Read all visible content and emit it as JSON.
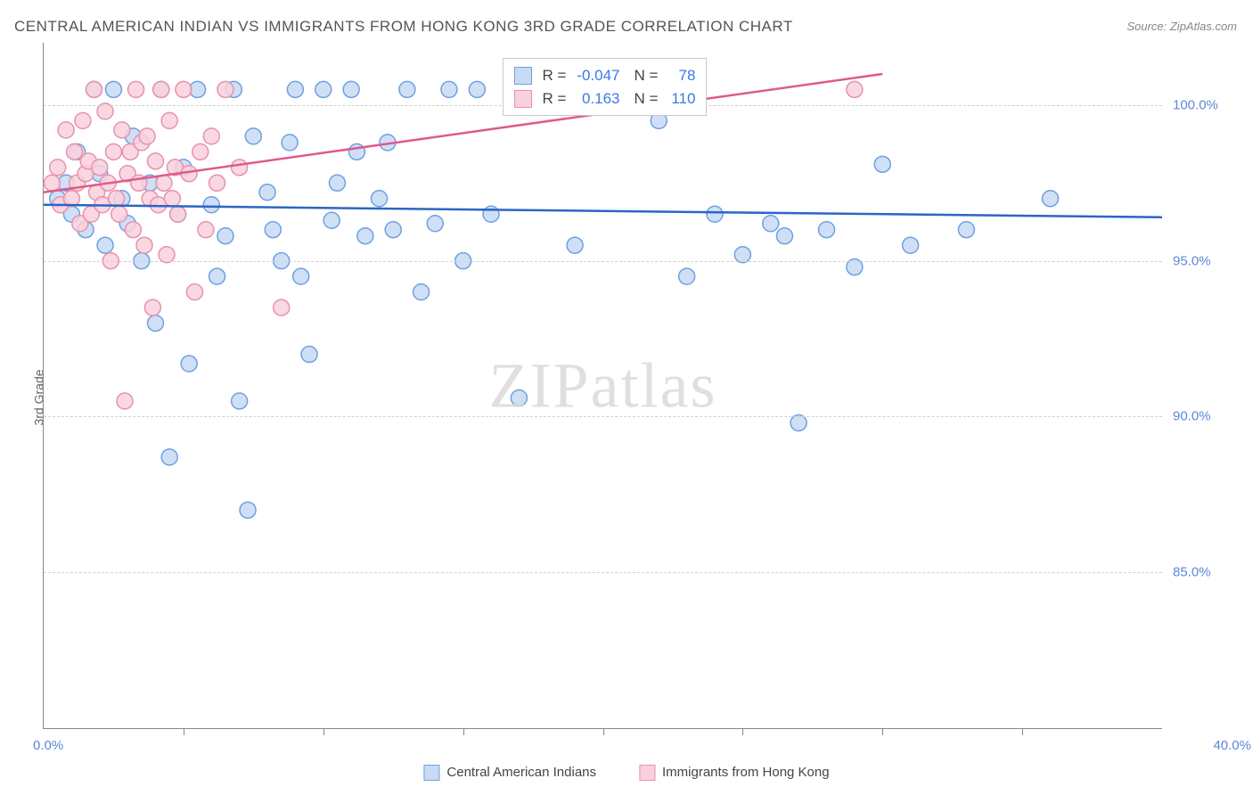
{
  "title": "CENTRAL AMERICAN INDIAN VS IMMIGRANTS FROM HONG KONG 3RD GRADE CORRELATION CHART",
  "source": "Source: ZipAtlas.com",
  "ylabel": "3rd Grade",
  "watermark_zip": "ZIP",
  "watermark_atlas": "atlas",
  "chart": {
    "type": "scatter",
    "xlim": [
      0,
      40
    ],
    "ylim": [
      80,
      102
    ],
    "xticks_pct": [
      5,
      10,
      15,
      20,
      25,
      30,
      35
    ],
    "ytick_values": [
      85,
      90,
      95,
      100
    ],
    "ytick_labels": [
      "85.0%",
      "90.0%",
      "95.0%",
      "100.0%"
    ],
    "xlim_left_label": "0.0%",
    "xlim_right_label": "40.0%",
    "grid_color": "#d0d0d0",
    "background_color": "#ffffff",
    "marker_radius": 9,
    "marker_stroke_width": 1.5,
    "line_width": 2.5,
    "series": [
      {
        "id": "cai",
        "label": "Central American Indians",
        "fill": "#c7dbf5",
        "stroke": "#6fa0e0",
        "line_color": "#2b66c4",
        "r_label": "R =",
        "r_value": "-0.047",
        "n_label": "N =",
        "n_value": "78",
        "trend": {
          "x1": 0,
          "y1": 96.8,
          "x2": 40,
          "y2": 96.4
        },
        "points": [
          [
            0.5,
            97.0
          ],
          [
            0.8,
            97.5
          ],
          [
            1.0,
            96.5
          ],
          [
            1.2,
            98.5
          ],
          [
            1.5,
            96.0
          ],
          [
            1.8,
            100.5
          ],
          [
            2.0,
            97.8
          ],
          [
            2.2,
            95.5
          ],
          [
            2.5,
            100.5
          ],
          [
            2.8,
            97.0
          ],
          [
            3.0,
            96.2
          ],
          [
            3.2,
            99.0
          ],
          [
            3.5,
            95.0
          ],
          [
            3.8,
            97.5
          ],
          [
            4.0,
            93.0
          ],
          [
            4.2,
            100.5
          ],
          [
            4.5,
            88.7
          ],
          [
            4.8,
            96.5
          ],
          [
            5.0,
            98.0
          ],
          [
            5.2,
            91.7
          ],
          [
            5.5,
            100.5
          ],
          [
            6.0,
            96.8
          ],
          [
            6.2,
            94.5
          ],
          [
            6.5,
            95.8
          ],
          [
            6.8,
            100.5
          ],
          [
            7.0,
            90.5
          ],
          [
            7.3,
            87.0
          ],
          [
            7.5,
            99.0
          ],
          [
            8.0,
            97.2
          ],
          [
            8.2,
            96.0
          ],
          [
            8.5,
            95.0
          ],
          [
            8.8,
            98.8
          ],
          [
            9.0,
            100.5
          ],
          [
            9.2,
            94.5
          ],
          [
            9.5,
            92.0
          ],
          [
            10.0,
            100.5
          ],
          [
            10.3,
            96.3
          ],
          [
            10.5,
            97.5
          ],
          [
            11.0,
            100.5
          ],
          [
            11.2,
            98.5
          ],
          [
            11.5,
            95.8
          ],
          [
            12.0,
            97.0
          ],
          [
            12.3,
            98.8
          ],
          [
            12.5,
            96.0
          ],
          [
            13.0,
            100.5
          ],
          [
            13.5,
            94.0
          ],
          [
            14.0,
            96.2
          ],
          [
            14.5,
            100.5
          ],
          [
            15.0,
            95.0
          ],
          [
            15.5,
            100.5
          ],
          [
            16.0,
            96.5
          ],
          [
            17.0,
            90.6
          ],
          [
            18.0,
            100.5
          ],
          [
            19.0,
            95.5
          ],
          [
            20.0,
            100.5
          ],
          [
            21.0,
            100.5
          ],
          [
            22.0,
            99.5
          ],
          [
            23.0,
            94.5
          ],
          [
            24.0,
            96.5
          ],
          [
            25.0,
            95.2
          ],
          [
            26.0,
            96.2
          ],
          [
            26.5,
            95.8
          ],
          [
            27.0,
            89.8
          ],
          [
            28.0,
            96.0
          ],
          [
            29.0,
            94.8
          ],
          [
            30.0,
            98.1
          ],
          [
            31.0,
            95.5
          ],
          [
            33.0,
            96.0
          ],
          [
            36.0,
            97.0
          ]
        ]
      },
      {
        "id": "hk",
        "label": "Immigrants from Hong Kong",
        "fill": "#f9d1dc",
        "stroke": "#e792ac",
        "line_color": "#e05a8a",
        "r_label": "R =",
        "r_value": "0.163",
        "n_label": "N =",
        "n_value": "110",
        "trend": {
          "x1": 0,
          "y1": 97.2,
          "x2": 30,
          "y2": 101.0
        },
        "points": [
          [
            0.3,
            97.5
          ],
          [
            0.5,
            98.0
          ],
          [
            0.6,
            96.8
          ],
          [
            0.8,
            99.2
          ],
          [
            1.0,
            97.0
          ],
          [
            1.1,
            98.5
          ],
          [
            1.2,
            97.5
          ],
          [
            1.3,
            96.2
          ],
          [
            1.4,
            99.5
          ],
          [
            1.5,
            97.8
          ],
          [
            1.6,
            98.2
          ],
          [
            1.7,
            96.5
          ],
          [
            1.8,
            100.5
          ],
          [
            1.9,
            97.2
          ],
          [
            2.0,
            98.0
          ],
          [
            2.1,
            96.8
          ],
          [
            2.2,
            99.8
          ],
          [
            2.3,
            97.5
          ],
          [
            2.4,
            95.0
          ],
          [
            2.5,
            98.5
          ],
          [
            2.6,
            97.0
          ],
          [
            2.7,
            96.5
          ],
          [
            2.8,
            99.2
          ],
          [
            2.9,
            90.5
          ],
          [
            3.0,
            97.8
          ],
          [
            3.1,
            98.5
          ],
          [
            3.2,
            96.0
          ],
          [
            3.3,
            100.5
          ],
          [
            3.4,
            97.5
          ],
          [
            3.5,
            98.8
          ],
          [
            3.6,
            95.5
          ],
          [
            3.7,
            99.0
          ],
          [
            3.8,
            97.0
          ],
          [
            3.9,
            93.5
          ],
          [
            4.0,
            98.2
          ],
          [
            4.1,
            96.8
          ],
          [
            4.2,
            100.5
          ],
          [
            4.3,
            97.5
          ],
          [
            4.4,
            95.2
          ],
          [
            4.5,
            99.5
          ],
          [
            4.6,
            97.0
          ],
          [
            4.7,
            98.0
          ],
          [
            4.8,
            96.5
          ],
          [
            5.0,
            100.5
          ],
          [
            5.2,
            97.8
          ],
          [
            5.4,
            94.0
          ],
          [
            5.6,
            98.5
          ],
          [
            5.8,
            96.0
          ],
          [
            6.0,
            99.0
          ],
          [
            6.2,
            97.5
          ],
          [
            6.5,
            100.5
          ],
          [
            7.0,
            98.0
          ],
          [
            8.5,
            93.5
          ],
          [
            29.0,
            100.5
          ]
        ]
      }
    ],
    "stats_box": {
      "left_pct": 41.0,
      "top_y": 101.5
    }
  },
  "legend_bottom": {
    "items": [
      {
        "label": "Central American Indians",
        "fill": "#c7dbf5",
        "stroke": "#6fa0e0"
      },
      {
        "label": "Immigrants from Hong Kong",
        "fill": "#f9d1dc",
        "stroke": "#e792ac"
      }
    ]
  }
}
